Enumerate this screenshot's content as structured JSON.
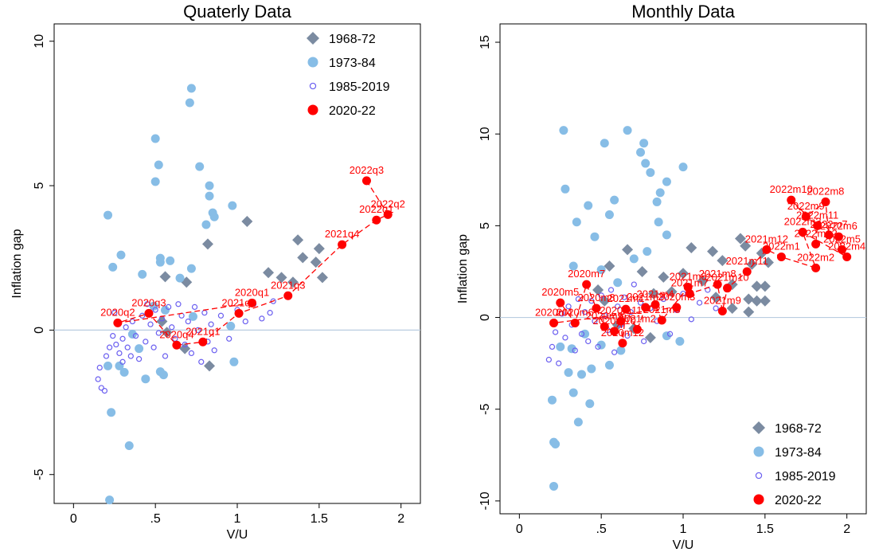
{
  "chart_data": [
    {
      "type": "scatter",
      "title": "Quaterly Data",
      "x_label": "V/U",
      "y_label": "Inflation gap",
      "xlim": [
        -0.06,
        2.06
      ],
      "ylim": [
        -6,
        10.6
      ],
      "xticks": [
        0,
        {
          "value": 0.5,
          "label": ".5"
        },
        1,
        1.5,
        2
      ],
      "yticks": [
        -5,
        0,
        5,
        10
      ],
      "reference_line": 0,
      "legend_position": "upper right",
      "series": [
        {
          "name": "1968-72",
          "color": "#7b8ba1",
          "marker": "diamond",
          "x": [
            0.56,
            0.69,
            0.82,
            1.06,
            1.19,
            1.27,
            1.37,
            1.4,
            1.48,
            1.5,
            1.52,
            1.34,
            0.83,
            0.68,
            0.57,
            0.54
          ],
          "values": [
            1.85,
            1.66,
            2.98,
            3.76,
            1.99,
            1.82,
            3.12,
            2.51,
            2.35,
            2.82,
            1.82,
            1.66,
            -1.24,
            -0.64,
            -0.08,
            0.3
          ]
        },
        {
          "name": "1973-84",
          "color": "#87bde6",
          "marker": "circle",
          "x": [
            0.72,
            0.71,
            0.5,
            0.52,
            0.5,
            0.77,
            0.83,
            0.83,
            0.85,
            0.81,
            0.97,
            0.21,
            0.29,
            0.24,
            0.42,
            0.53,
            0.53,
            0.59,
            0.65,
            0.72,
            0.73,
            0.56,
            0.49,
            0.36,
            0.4,
            0.28,
            0.31,
            0.44,
            0.53,
            0.55,
            0.21,
            0.23,
            0.34,
            0.22,
            0.98,
            0.96,
            0.86
          ],
          "values": [
            8.37,
            7.87,
            6.63,
            5.72,
            5.14,
            5.66,
            5.0,
            4.64,
            4.06,
            3.65,
            4.31,
            3.98,
            2.6,
            2.18,
            1.93,
            2.35,
            2.49,
            2.4,
            1.8,
            2.13,
            0.47,
            0.69,
            0.83,
            -0.14,
            -0.64,
            -1.24,
            -1.46,
            -1.69,
            -1.44,
            -1.55,
            -1.24,
            -2.85,
            -4.0,
            -5.88,
            -1.1,
            0.14,
            3.92
          ]
        },
        {
          "name": "1985-2019",
          "color": "#6b5ff0",
          "marker": "open-circle",
          "x": [
            0.15,
            0.17,
            0.19,
            0.16,
            0.2,
            0.22,
            0.24,
            0.26,
            0.28,
            0.3,
            0.32,
            0.33,
            0.35,
            0.36,
            0.38,
            0.4,
            0.42,
            0.44,
            0.45,
            0.47,
            0.49,
            0.5,
            0.52,
            0.54,
            0.56,
            0.58,
            0.6,
            0.62,
            0.64,
            0.66,
            0.68,
            0.7,
            0.72,
            0.74,
            0.76,
            0.78,
            0.8,
            0.82,
            0.84,
            0.86,
            0.9,
            0.95,
            1.0,
            1.05,
            1.1,
            1.15,
            1.2,
            1.22,
            0.3,
            0.25
          ],
          "values": [
            -1.7,
            -2.0,
            -2.1,
            -1.3,
            -0.9,
            -0.6,
            -0.2,
            -0.5,
            -0.8,
            -0.3,
            0.1,
            -0.6,
            -0.9,
            0.3,
            -0.2,
            -1.0,
            0.5,
            -0.4,
            0.9,
            0.2,
            -0.6,
            0.7,
            -0.1,
            0.4,
            -0.9,
            0.8,
            0.1,
            -0.3,
            0.9,
            0.5,
            -0.5,
            0.3,
            -0.8,
            0.8,
            0.0,
            -1.1,
            0.6,
            -0.4,
            0.2,
            -0.7,
            0.5,
            -0.3,
            0.7,
            0.3,
            0.9,
            0.4,
            0.6,
            1.0,
            -1.1,
            0.6
          ]
        },
        {
          "name": "2020-22",
          "color": "#ff0000",
          "marker": "circle",
          "line_style": "dashed",
          "x": [
            1.09,
            0.27,
            0.46,
            0.63,
            0.79,
            1.01,
            1.31,
            1.64,
            1.85,
            1.92,
            1.79
          ],
          "values": [
            0.94,
            0.25,
            0.58,
            -0.52,
            -0.41,
            0.58,
            1.19,
            2.96,
            3.81,
            4.0,
            5.17
          ],
          "point_labels": [
            "2020q1",
            "2020q2",
            "2020q3",
            "2020q4",
            "2021q1",
            "2021q2",
            "2021q3",
            "2021q4",
            "2022q1",
            "2022q2",
            "2022q3"
          ]
        }
      ]
    },
    {
      "type": "scatter",
      "title": "Monthly Data",
      "x_label": "V/U",
      "y_label": "Inflation gap",
      "xlim": [
        -0.06,
        2.06
      ],
      "ylim": [
        -10.7,
        16
      ],
      "xticks": [
        0,
        {
          "value": 0.5,
          "label": ".5"
        },
        1,
        1.5,
        2
      ],
      "yticks": [
        -10,
        -5,
        0,
        5,
        10,
        15
      ],
      "reference_line": 0,
      "legend_position": "lower right",
      "series": [
        {
          "name": "1968-72",
          "color": "#7b8ba1",
          "marker": "diamond",
          "x": [
            0.55,
            0.66,
            0.75,
            0.82,
            0.88,
            0.93,
            1.0,
            1.05,
            1.12,
            1.18,
            1.24,
            1.3,
            1.35,
            1.38,
            1.42,
            1.45,
            1.48,
            1.5,
            1.52,
            1.4,
            1.45,
            1.4,
            1.5,
            1.3,
            1.2,
            0.8,
            0.7,
            0.6,
            0.52,
            0.48
          ],
          "values": [
            2.8,
            3.7,
            2.5,
            1.3,
            2.2,
            1.4,
            2.4,
            3.8,
            2.0,
            3.6,
            3.1,
            1.8,
            4.3,
            3.9,
            2.9,
            1.7,
            3.5,
            1.7,
            3.0,
            1.0,
            0.9,
            0.3,
            0.9,
            0.5,
            1.1,
            -1.1,
            -0.6,
            -0.4,
            0.9,
            1.5
          ]
        },
        {
          "name": "1973-84",
          "color": "#87bde6",
          "marker": "circle",
          "x": [
            0.27,
            0.28,
            0.21,
            0.21,
            0.22,
            0.2,
            0.3,
            0.33,
            0.36,
            0.35,
            0.42,
            0.46,
            0.52,
            0.55,
            0.58,
            0.66,
            0.74,
            0.76,
            0.77,
            0.8,
            0.84,
            0.86,
            0.9,
            0.85,
            1.0,
            0.9,
            0.78,
            0.7,
            0.33,
            0.5,
            0.6,
            0.43,
            0.44,
            0.38,
            0.32,
            0.5,
            0.55,
            0.62,
            0.9,
            0.98,
            0.4,
            0.25
          ],
          "values": [
            10.2,
            7.0,
            -6.8,
            -9.2,
            -6.9,
            -4.5,
            -3.0,
            -4.1,
            -5.7,
            5.2,
            6.1,
            4.4,
            9.5,
            5.6,
            6.4,
            10.2,
            9.0,
            9.5,
            8.4,
            7.9,
            6.3,
            6.8,
            7.4,
            5.2,
            8.2,
            4.5,
            3.6,
            3.2,
            2.8,
            2.6,
            1.9,
            -4.7,
            -2.8,
            -3.1,
            -1.7,
            -1.5,
            -2.6,
            -1.8,
            -1.0,
            -1.3,
            -0.9,
            -1.6
          ]
        },
        {
          "name": "1985-2019",
          "color": "#6b5ff0",
          "marker": "open-circle",
          "x": [
            0.18,
            0.2,
            0.22,
            0.24,
            0.26,
            0.28,
            0.3,
            0.32,
            0.34,
            0.36,
            0.38,
            0.4,
            0.42,
            0.44,
            0.46,
            0.48,
            0.5,
            0.52,
            0.54,
            0.56,
            0.58,
            0.6,
            0.62,
            0.64,
            0.66,
            0.68,
            0.7,
            0.72,
            0.74,
            0.76,
            0.8,
            0.84,
            0.88,
            0.92,
            0.96,
            1.0,
            1.05,
            1.1,
            1.15,
            1.2
          ],
          "values": [
            -2.3,
            -1.6,
            -0.8,
            -2.5,
            0.2,
            -1.1,
            0.6,
            -0.4,
            -1.8,
            1.0,
            -0.9,
            0.3,
            -1.3,
            0.9,
            -0.2,
            -1.6,
            1.2,
            0.1,
            -0.7,
            1.5,
            -1.9,
            0.6,
            -0.4,
            1.1,
            -1.0,
            0.3,
            1.8,
            -0.6,
            0.8,
            -1.3,
            0.5,
            -0.2,
            1.0,
            -0.9,
            0.4,
            1.3,
            -0.1,
            0.8,
            1.5,
            0.5
          ]
        },
        {
          "name": "2020-22",
          "color": "#ff0000",
          "marker": "circle",
          "line_style": "dashed",
          "x": [
            0.96,
            0.21,
            0.25,
            0.34,
            0.41,
            0.47,
            0.52,
            0.58,
            0.62,
            0.63,
            0.65,
            0.72,
            0.77,
            0.83,
            0.87,
            1.03,
            1.04,
            1.21,
            1.24,
            1.27,
            1.39,
            1.51,
            1.6,
            1.81,
            1.73,
            2.0,
            1.97,
            1.95,
            1.89,
            1.87,
            1.75,
            1.66,
            1.82,
            1.81
          ],
          "values": [
            0.55,
            -0.3,
            0.8,
            -0.3,
            1.8,
            0.5,
            -0.5,
            -0.75,
            -0.2,
            -1.4,
            0.45,
            -0.65,
            0.55,
            0.7,
            -0.15,
            1.65,
            1.3,
            1.8,
            0.35,
            1.6,
            2.5,
            3.7,
            3.3,
            2.7,
            4.65,
            3.3,
            3.7,
            4.4,
            4.5,
            6.3,
            5.5,
            6.4,
            5.0,
            4.0
          ],
          "point_labels": [
            "2020m3",
            "2020m4",
            "2020m5",
            "2020m6",
            "2020m7",
            "2020m8",
            "2020m9",
            "2020m10",
            "2020m11",
            "2020m12",
            "2021m1",
            "2021m2",
            "2021m3",
            "2021m4",
            "2021m5",
            "2021m6",
            "2021m7",
            "2021m8",
            "2021m9",
            "2021m10",
            "2021m11",
            "2021m12",
            "2022m1",
            "2022m2",
            "2022m3",
            "2022m4",
            "2022m5",
            "2022m6",
            "2022m7",
            "2022m8",
            "2022m9",
            "2022m10",
            "2022m11",
            "2022m12"
          ]
        }
      ]
    }
  ]
}
